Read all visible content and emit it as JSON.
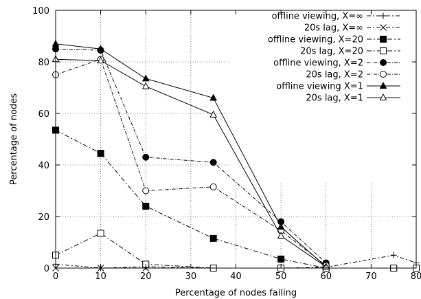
{
  "chart_data": {
    "type": "line",
    "title": "",
    "xlabel": "Percentage of nodes failing",
    "ylabel": "Percentage of nodes",
    "xlim": [
      0,
      80
    ],
    "ylim": [
      0,
      100
    ],
    "x_ticks": [
      0,
      10,
      20,
      30,
      40,
      50,
      60,
      70,
      80
    ],
    "y_ticks": [
      0,
      20,
      40,
      60,
      80,
      100
    ],
    "grid": true,
    "legend_position": "top-right",
    "series": [
      {
        "name": "offline viewing, X=∞",
        "marker": "plus",
        "filled": false,
        "dash": "6,3,2,3",
        "x": [
          0,
          10,
          20,
          35,
          50,
          60,
          75,
          80
        ],
        "y": [
          1.5,
          0,
          0.5,
          0,
          0,
          0.3,
          5,
          2
        ]
      },
      {
        "name": "20s lag, X=∞",
        "marker": "cross",
        "filled": false,
        "dash": "6,3,2,3",
        "x": [
          0,
          10,
          20,
          35,
          50,
          60,
          75,
          80
        ],
        "y": [
          0,
          0,
          0,
          0,
          0,
          0,
          0,
          0
        ]
      },
      {
        "name": "offline viewing, X=20",
        "marker": "square",
        "filled": true,
        "dash": "7,3,2,3",
        "x": [
          0,
          10,
          20,
          35,
          50,
          60,
          75,
          80
        ],
        "y": [
          53.5,
          44.5,
          24,
          11.5,
          3.5,
          0,
          0,
          0
        ]
      },
      {
        "name": "20s lag, X=20",
        "marker": "square",
        "filled": false,
        "dash": "7,3,2,3",
        "x": [
          0,
          10,
          20,
          35,
          50,
          60,
          75,
          80
        ],
        "y": [
          5,
          13.5,
          1.5,
          0,
          0,
          0,
          0,
          0
        ]
      },
      {
        "name": "offline viewing, X=2",
        "marker": "circle",
        "filled": true,
        "dash": "5,2,1,2",
        "x": [
          0,
          10,
          20,
          35,
          50,
          60
        ],
        "y": [
          85,
          84.5,
          43,
          41,
          18,
          2
        ]
      },
      {
        "name": "20s lag, X=2",
        "marker": "circle",
        "filled": false,
        "dash": "5,2,1,2",
        "x": [
          0,
          10,
          20,
          35,
          50,
          60
        ],
        "y": [
          75,
          81,
          30,
          31.5,
          14.5,
          1
        ]
      },
      {
        "name": "offline viewing X=1",
        "marker": "triangle",
        "filled": true,
        "dash": "",
        "x": [
          0,
          10,
          20,
          35,
          50,
          60
        ],
        "y": [
          87,
          85,
          73.5,
          66,
          16,
          0.5
        ]
      },
      {
        "name": "20s lag, X=1",
        "marker": "triangle",
        "filled": false,
        "dash": "",
        "x": [
          0,
          10,
          20,
          35,
          50,
          60
        ],
        "y": [
          81,
          80.5,
          70.5,
          59.5,
          12.5,
          0.5
        ]
      }
    ]
  }
}
